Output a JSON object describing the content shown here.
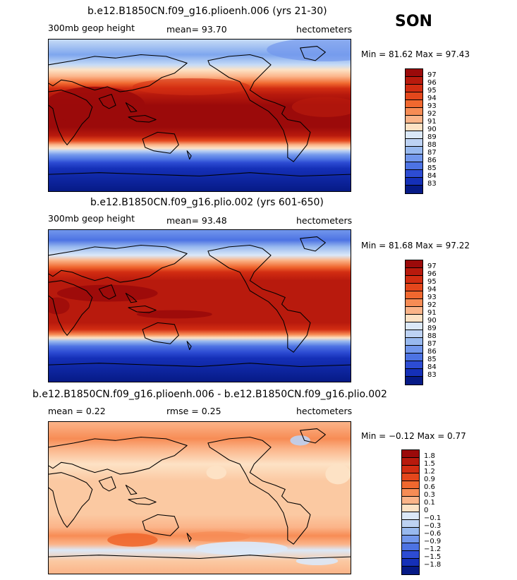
{
  "season": "SON",
  "panels": [
    {
      "title": "b.e12.B1850CN.f09_g16.plioenh.006 (yrs 21-30)",
      "left_label": "300mb geop height",
      "center_label": "mean=   93.70",
      "right_label": "hectometers",
      "stats": "Min =  81.62 Max =  97.43",
      "colorbar_labels": [
        "97",
        "96",
        "95",
        "94",
        "93",
        "92",
        "91",
        "90",
        "89",
        "88",
        "87",
        "86",
        "85",
        "84",
        "83"
      ],
      "colorbar_colors": [
        "#9b0a0a",
        "#b81a0d",
        "#d22d12",
        "#e4471c",
        "#f0682f",
        "#f78c55",
        "#fbb489",
        "#fde2c5",
        "#dbe8f8",
        "#bdd2f3",
        "#98b9ef",
        "#7297ec",
        "#4d73e3",
        "#2d4cd3",
        "#1530b8",
        "#061a86"
      ],
      "field_stops": [
        {
          "lat": 90,
          "color": "#c6dbf6"
        },
        {
          "lat": 72,
          "color": "#7ea6ee"
        },
        {
          "lat": 60,
          "color": "#c6dbf6"
        },
        {
          "lat": 54,
          "color": "#fde2c5"
        },
        {
          "lat": 46,
          "color": "#fbb489"
        },
        {
          "lat": 38,
          "color": "#f0682f"
        },
        {
          "lat": 32,
          "color": "#d22d12"
        },
        {
          "lat": 25,
          "color": "#b81a0d"
        },
        {
          "lat": 12,
          "color": "#9b0a0a"
        },
        {
          "lat": -14,
          "color": "#9b0a0a"
        },
        {
          "lat": -24,
          "color": "#b81a0d"
        },
        {
          "lat": -30,
          "color": "#e4471c"
        },
        {
          "lat": -35,
          "color": "#fbb489"
        },
        {
          "lat": -39,
          "color": "#fde2c5"
        },
        {
          "lat": -42,
          "color": "#bdd2f3"
        },
        {
          "lat": -47,
          "color": "#7297ec"
        },
        {
          "lat": -52,
          "color": "#4d73e3"
        },
        {
          "lat": -56,
          "color": "#2d4cd3"
        },
        {
          "lat": -63,
          "color": "#1530b8"
        },
        {
          "lat": -90,
          "color": "#061a86"
        }
      ]
    },
    {
      "title": "b.e12.B1850CN.f09_g16.plio.002 (yrs 601-650)",
      "left_label": "300mb geop height",
      "center_label": "mean=   93.48",
      "right_label": "hectometers",
      "stats": "Min =  81.68 Max =  97.22",
      "colorbar_labels": [
        "97",
        "96",
        "95",
        "94",
        "93",
        "92",
        "91",
        "90",
        "89",
        "88",
        "87",
        "86",
        "85",
        "84",
        "83"
      ],
      "colorbar_colors": [
        "#9b0a0a",
        "#b81a0d",
        "#d22d12",
        "#e4471c",
        "#f0682f",
        "#f78c55",
        "#fbb489",
        "#fde2c5",
        "#dbe8f8",
        "#bdd2f3",
        "#98b9ef",
        "#7297ec",
        "#4d73e3",
        "#2d4cd3",
        "#1530b8",
        "#061a86"
      ],
      "field_stops": [
        {
          "lat": 90,
          "color": "#7297ec"
        },
        {
          "lat": 78,
          "color": "#4d73e3"
        },
        {
          "lat": 70,
          "color": "#98b9ef"
        },
        {
          "lat": 60,
          "color": "#dbe8f8"
        },
        {
          "lat": 54,
          "color": "#fbb489"
        },
        {
          "lat": 46,
          "color": "#f0682f"
        },
        {
          "lat": 40,
          "color": "#d22d12"
        },
        {
          "lat": 30,
          "color": "#b81a0d"
        },
        {
          "lat": -20,
          "color": "#b81a0d"
        },
        {
          "lat": -28,
          "color": "#d22d12"
        },
        {
          "lat": -34,
          "color": "#f78c55"
        },
        {
          "lat": -38,
          "color": "#fde2c5"
        },
        {
          "lat": -42,
          "color": "#98b9ef"
        },
        {
          "lat": -48,
          "color": "#4d73e3"
        },
        {
          "lat": -55,
          "color": "#2d4cd3"
        },
        {
          "lat": -62,
          "color": "#1530b8"
        },
        {
          "lat": -90,
          "color": "#061a86"
        }
      ]
    },
    {
      "title": "b.e12.B1850CN.f09_g16.plioenh.006 - b.e12.B1850CN.f09_g16.plio.002",
      "left_label": "mean =    0.22",
      "center_label": "rmse =    0.25",
      "right_label": "hectometers",
      "stats": "Min =  −0.12 Max =    0.77",
      "colorbar_labels": [
        "1.8",
        "1.5",
        "1.2",
        "0.9",
        "0.6",
        "0.3",
        "0.1",
        "0",
        "−0.1",
        "−0.3",
        "−0.6",
        "−0.9",
        "−1.2",
        "−1.5",
        "−1.8"
      ],
      "colorbar_colors": [
        "#9b0a0a",
        "#b81a0d",
        "#d22d12",
        "#e4471c",
        "#f0682f",
        "#f78c55",
        "#fbb489",
        "#fde2c5",
        "#dbe8f8",
        "#bdd2f3",
        "#98b9ef",
        "#7297ec",
        "#4d73e3",
        "#2d4cd3",
        "#1530b8",
        "#061a86"
      ],
      "field_stops": [
        {
          "lat": 90,
          "color": "#fbb489"
        },
        {
          "lat": 70,
          "color": "#f78c55"
        },
        {
          "lat": 58,
          "color": "#fbb489"
        },
        {
          "lat": 40,
          "color": "#fde2c5"
        },
        {
          "lat": 20,
          "color": "#fbc9a2"
        },
        {
          "lat": -20,
          "color": "#fbc9a2"
        },
        {
          "lat": -35,
          "color": "#fbb489"
        },
        {
          "lat": -45,
          "color": "#f78c55"
        },
        {
          "lat": -55,
          "color": "#fbb489"
        },
        {
          "lat": -62,
          "color": "#dbe8f8"
        },
        {
          "lat": -75,
          "color": "#fbc9a2"
        },
        {
          "lat": -90,
          "color": "#fbb489"
        }
      ]
    }
  ]
}
